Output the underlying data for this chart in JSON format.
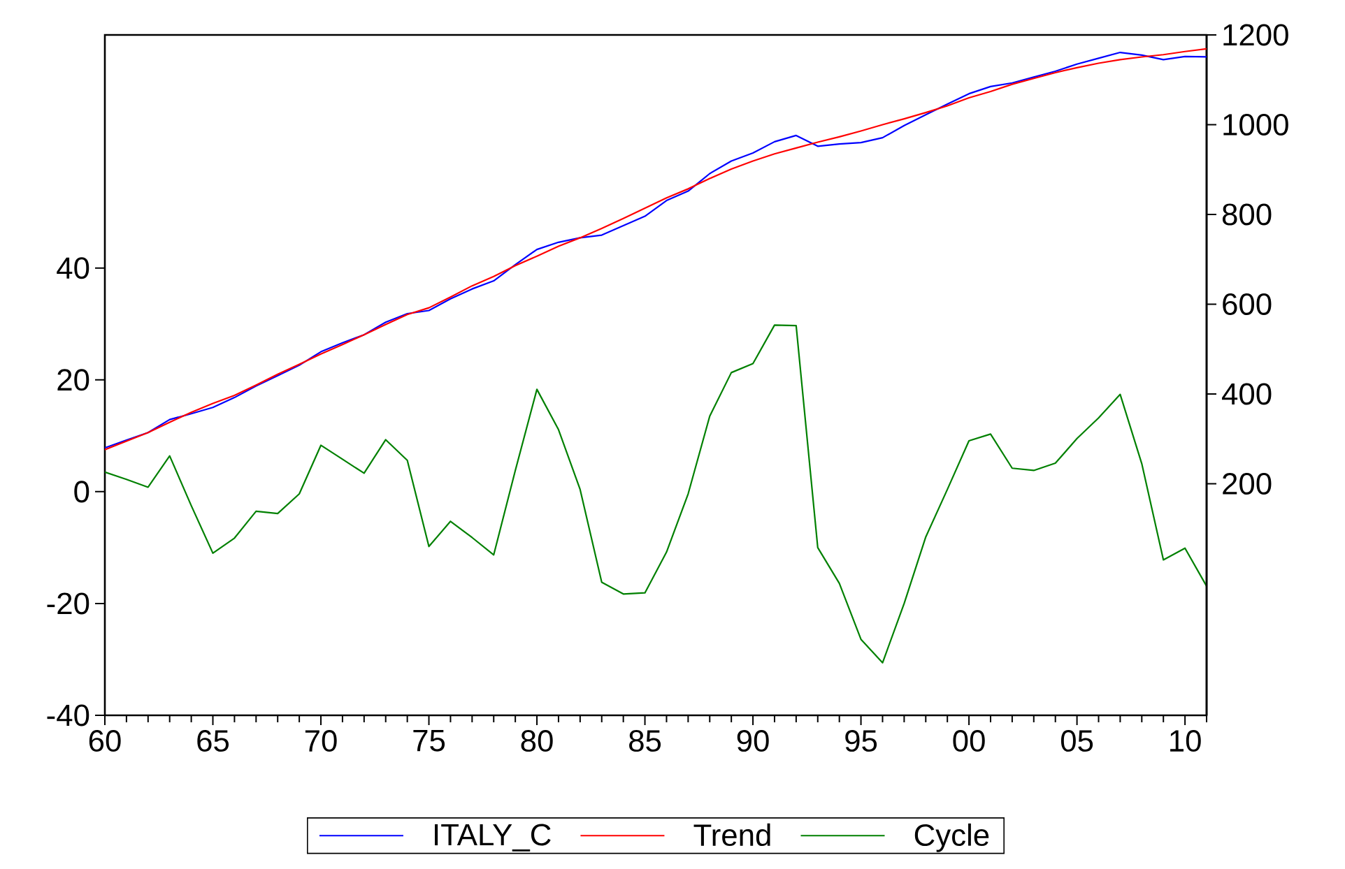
{
  "chart_data": {
    "type": "line",
    "x": [
      1960,
      1961,
      1962,
      1963,
      1964,
      1965,
      1966,
      1967,
      1968,
      1969,
      1970,
      1971,
      1972,
      1973,
      1974,
      1975,
      1976,
      1977,
      1978,
      1979,
      1980,
      1981,
      1982,
      1983,
      1984,
      1985,
      1986,
      1987,
      1988,
      1989,
      1990,
      1991,
      1992,
      1993,
      1994,
      1995,
      1996,
      1997,
      1998,
      1999,
      2000,
      2001,
      2002,
      2003,
      2004,
      2005,
      2006,
      2007,
      2008,
      2009,
      2010,
      2011
    ],
    "xlim": [
      1960,
      2011
    ],
    "xticks": [
      {
        "value": 1960,
        "label": "60"
      },
      {
        "value": 1961,
        "label": null
      },
      {
        "value": 1962,
        "label": null
      },
      {
        "value": 1963,
        "label": null
      },
      {
        "value": 1964,
        "label": null
      },
      {
        "value": 1965,
        "label": "65"
      },
      {
        "value": 1966,
        "label": null
      },
      {
        "value": 1967,
        "label": null
      },
      {
        "value": 1968,
        "label": null
      },
      {
        "value": 1969,
        "label": null
      },
      {
        "value": 1970,
        "label": "70"
      },
      {
        "value": 1971,
        "label": null
      },
      {
        "value": 1972,
        "label": null
      },
      {
        "value": 1973,
        "label": null
      },
      {
        "value": 1974,
        "label": null
      },
      {
        "value": 1975,
        "label": "75"
      },
      {
        "value": 1976,
        "label": null
      },
      {
        "value": 1977,
        "label": null
      },
      {
        "value": 1978,
        "label": null
      },
      {
        "value": 1979,
        "label": null
      },
      {
        "value": 1980,
        "label": "80"
      },
      {
        "value": 1981,
        "label": null
      },
      {
        "value": 1982,
        "label": null
      },
      {
        "value": 1983,
        "label": null
      },
      {
        "value": 1984,
        "label": null
      },
      {
        "value": 1985,
        "label": "85"
      },
      {
        "value": 1986,
        "label": null
      },
      {
        "value": 1987,
        "label": null
      },
      {
        "value": 1988,
        "label": null
      },
      {
        "value": 1989,
        "label": null
      },
      {
        "value": 1990,
        "label": "90"
      },
      {
        "value": 1991,
        "label": null
      },
      {
        "value": 1992,
        "label": null
      },
      {
        "value": 1993,
        "label": null
      },
      {
        "value": 1994,
        "label": null
      },
      {
        "value": 1995,
        "label": "95"
      },
      {
        "value": 1996,
        "label": null
      },
      {
        "value": 1997,
        "label": null
      },
      {
        "value": 1998,
        "label": null
      },
      {
        "value": 1999,
        "label": null
      },
      {
        "value": 2000,
        "label": "00"
      },
      {
        "value": 2001,
        "label": null
      },
      {
        "value": 2002,
        "label": null
      },
      {
        "value": 2003,
        "label": null
      },
      {
        "value": 2004,
        "label": null
      },
      {
        "value": 2005,
        "label": "05"
      },
      {
        "value": 2006,
        "label": null
      },
      {
        "value": 2007,
        "label": null
      },
      {
        "value": 2008,
        "label": null
      },
      {
        "value": 2009,
        "label": null
      },
      {
        "value": 2010,
        "label": "10"
      },
      {
        "value": 2011,
        "label": null
      }
    ],
    "ylim": [
      -40,
      81.7
    ],
    "yticks": [
      -40,
      -20,
      0,
      20,
      40
    ],
    "y2lim": [
      -316,
      1200
    ],
    "y2ticks": [
      200,
      400,
      600,
      800,
      1000,
      1200
    ],
    "legend": "bottom",
    "series": [
      {
        "name": "ITALY_C",
        "color": "#0000ff",
        "axis": "y2",
        "values": [
          280,
          297,
          314,
          343,
          356,
          370,
          392,
          418,
          441,
          464,
          494,
          514,
          532,
          560,
          579,
          586,
          612,
          634,
          652,
          688,
          722,
          738,
          748,
          754,
          775,
          796,
          831,
          852,
          891,
          919,
          937,
          962,
          976,
          952,
          957,
          960,
          971,
          998,
          1022,
          1046,
          1069,
          1085,
          1093,
          1106,
          1119,
          1135,
          1148,
          1161,
          1155,
          1145,
          1152,
          1151
        ]
      },
      {
        "name": "Trend",
        "color": "#ff0000",
        "axis": "y2",
        "values": [
          276,
          295,
          314,
          337,
          359,
          379,
          397,
          420,
          444,
          466,
          489,
          510,
          532,
          555,
          577,
          592,
          616,
          641,
          662,
          686,
          707,
          729,
          748,
          769,
          791,
          814,
          837,
          857,
          880,
          901,
          919,
          935,
          948,
          961,
          973,
          986,
          1000,
          1013,
          1027,
          1042,
          1060,
          1074,
          1090,
          1103,
          1116,
          1127,
          1137,
          1145,
          1151,
          1156,
          1163,
          1169
        ]
      },
      {
        "name": "Cycle",
        "color": "#008000",
        "axis": "y",
        "values": [
          3.5,
          2.2,
          0.8,
          6.4,
          -2.5,
          -11,
          -8.3,
          -3.5,
          -3.9,
          -0.4,
          8.3,
          5.8,
          3.3,
          9.3,
          5.6,
          -9.8,
          -5.3,
          -8.2,
          -11.3,
          3.8,
          18.3,
          11.1,
          0.4,
          -16.2,
          -18.3,
          -18.1,
          -10.8,
          -0.4,
          13.5,
          21.3,
          22.9,
          29.8,
          29.7,
          -10,
          -16.4,
          -26.4,
          -30.6,
          -20,
          -8.1,
          0.4,
          9.1,
          10.3,
          4.2,
          3.8,
          5.1,
          9.5,
          13.2,
          17.4,
          5,
          -12.2,
          -10.1,
          -16.9
        ]
      }
    ]
  }
}
